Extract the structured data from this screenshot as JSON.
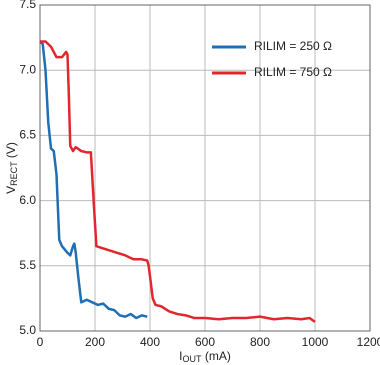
{
  "chart_data": {
    "type": "line",
    "x_label": {
      "main": "I",
      "sub": "OUT",
      "unit": " (mA)"
    },
    "y_label": {
      "main": "V",
      "sub": "RECT",
      "unit": " (V)"
    },
    "xlim": [
      0,
      1200
    ],
    "xticks": [
      0,
      200,
      400,
      600,
      800,
      1000,
      1200
    ],
    "ylim": [
      5,
      7.5
    ],
    "yticks": [
      {
        "value": 5,
        "label": "5.0"
      },
      5.5,
      {
        "value": 6,
        "label": "6.0"
      },
      6.5,
      {
        "value": 7,
        "label": "7.0"
      },
      7.5
    ],
    "grid": true,
    "legend": "upper right",
    "series": [
      {
        "name": "RILIM = 250 Ω",
        "color": "#1f6fb5",
        "x": [
          0,
          10,
          20,
          30,
          40,
          50,
          60,
          70,
          80,
          100,
          110,
          120,
          125,
          130,
          140,
          150,
          170,
          190,
          210,
          230,
          250,
          270,
          290,
          310,
          330,
          350,
          370,
          390
        ],
        "values": [
          7.22,
          7.2,
          7.0,
          6.6,
          6.4,
          6.38,
          6.2,
          5.7,
          5.65,
          5.6,
          5.58,
          5.65,
          5.67,
          5.6,
          5.4,
          5.22,
          5.24,
          5.22,
          5.2,
          5.21,
          5.17,
          5.16,
          5.12,
          5.11,
          5.13,
          5.1,
          5.12,
          5.11
        ]
      },
      {
        "name": "RILIM = 750 Ω",
        "color": "#e3262b",
        "x": [
          0,
          20,
          40,
          60,
          80,
          95,
          100,
          105,
          110,
          120,
          130,
          150,
          170,
          185,
          195,
          205,
          220,
          250,
          280,
          310,
          340,
          370,
          390,
          395,
          400,
          410,
          420,
          440,
          470,
          500,
          530,
          560,
          600,
          650,
          700,
          750,
          800,
          850,
          900,
          950,
          980,
          1000
        ],
        "values": [
          7.22,
          7.22,
          7.18,
          7.1,
          7.1,
          7.14,
          7.12,
          6.8,
          6.42,
          6.38,
          6.41,
          6.38,
          6.37,
          6.37,
          6.0,
          5.65,
          5.64,
          5.62,
          5.6,
          5.58,
          5.55,
          5.55,
          5.54,
          5.5,
          5.42,
          5.25,
          5.2,
          5.19,
          5.15,
          5.13,
          5.12,
          5.1,
          5.1,
          5.09,
          5.1,
          5.1,
          5.11,
          5.09,
          5.1,
          5.09,
          5.1,
          5.07
        ]
      }
    ]
  }
}
